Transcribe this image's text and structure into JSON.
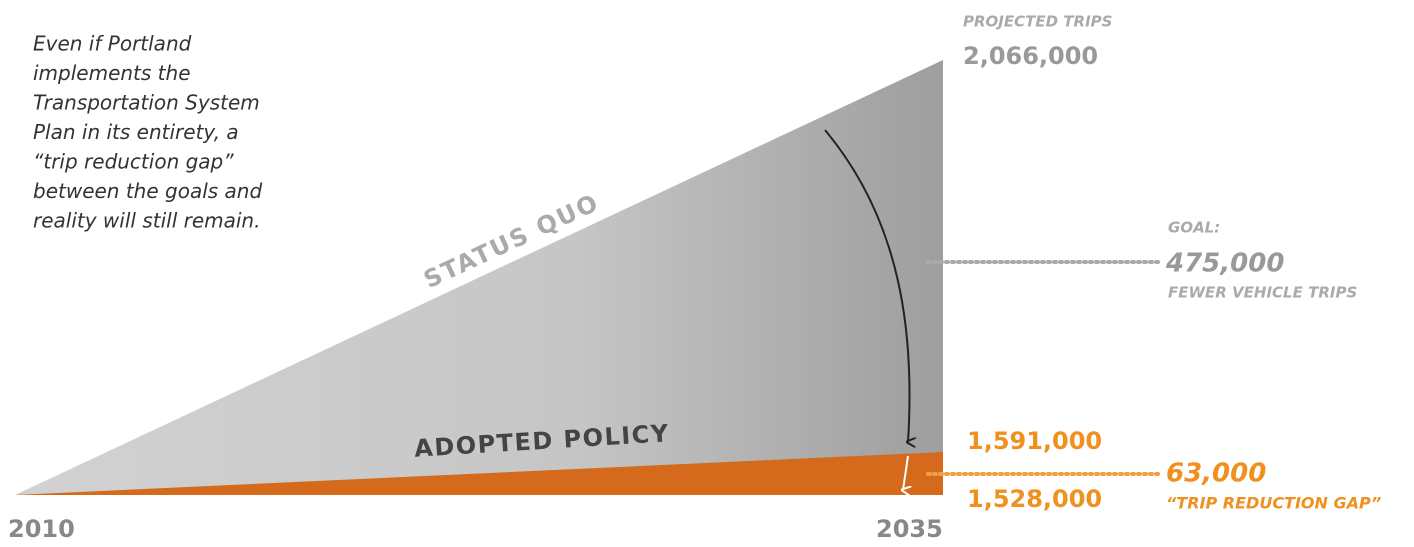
{
  "intro": [
    "Even if Portland",
    "implements the",
    "Transportation System",
    "Plan in its entirety, a",
    "“trip reduction gap”",
    "between the goals and",
    "reality will still remain."
  ],
  "projected": {
    "label": "PROJECTED TRIPS",
    "value": "2,066,000"
  },
  "status_quo": "STATUS QUO",
  "adopted_policy": "ADOPTED POLICY",
  "goal": {
    "label": "GOAL:",
    "value": "475,000",
    "caption": "FEWER VEHICLE TRIPS"
  },
  "policy_value": "1,591,000",
  "goal_value": "1,528,000",
  "gap": {
    "value": "63,000",
    "caption": "“TRIP REDUCTION GAP”"
  },
  "years": {
    "start": "2010",
    "end": "2035"
  }
}
